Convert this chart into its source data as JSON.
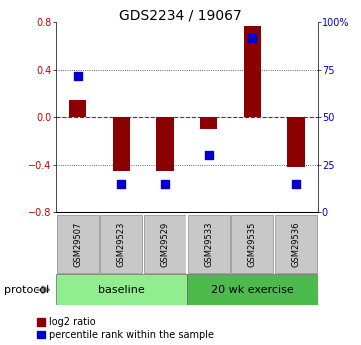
{
  "title": "GDS2234 / 19067",
  "samples": [
    "GSM29507",
    "GSM29523",
    "GSM29529",
    "GSM29533",
    "GSM29535",
    "GSM29536"
  ],
  "log2_ratio": [
    0.15,
    -0.45,
    -0.45,
    -0.1,
    0.77,
    -0.42
  ],
  "percentile_rank": [
    72,
    15,
    15,
    30,
    92,
    15
  ],
  "ylim_left": [
    -0.8,
    0.8
  ],
  "ylim_right": [
    0,
    100
  ],
  "yticks_left": [
    -0.8,
    -0.4,
    0.0,
    0.4,
    0.8
  ],
  "yticks_right": [
    0,
    25,
    50,
    75,
    100
  ],
  "ytick_labels_right": [
    "0",
    "25",
    "50",
    "75",
    "100%"
  ],
  "bar_color": "#8B0000",
  "dot_color": "#0000CD",
  "zero_line_color": "#CC0000",
  "hline_color": "#333333",
  "sample_box_color": "#C8C8C8",
  "baseline_color": "#90EE90",
  "exercise_color": "#4CBB4C",
  "protocol_label": "protocol",
  "baseline_label": "baseline",
  "exercise_label": "20 wk exercise",
  "legend_items": [
    "log2 ratio",
    "percentile rank within the sample"
  ],
  "bar_width": 0.4,
  "dot_size": 40,
  "title_fontsize": 10,
  "tick_fontsize": 7,
  "label_fontsize": 7,
  "sample_fontsize": 6,
  "protocol_fontsize": 8,
  "group_fontsize": 8
}
